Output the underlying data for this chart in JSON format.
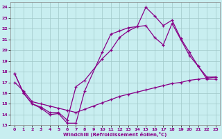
{
  "xlabel": "Windchill (Refroidissement éolien,°C)",
  "background_color": "#c8eef0",
  "grid_color": "#a0c8c8",
  "line_color": "#880088",
  "xlim": [
    -0.5,
    23.5
  ],
  "ylim": [
    13,
    24.5
  ],
  "xticks": [
    0,
    1,
    2,
    3,
    4,
    5,
    6,
    7,
    8,
    9,
    10,
    11,
    12,
    13,
    14,
    15,
    16,
    17,
    18,
    19,
    20,
    21,
    22,
    23
  ],
  "yticks": [
    13,
    14,
    15,
    16,
    17,
    18,
    19,
    20,
    21,
    22,
    23,
    24
  ],
  "line1_x": [
    0,
    1,
    2,
    3,
    4,
    5,
    6,
    7,
    8,
    10,
    11,
    12,
    13,
    14,
    15,
    16,
    17,
    18,
    19,
    20,
    21,
    22,
    23
  ],
  "line1_y": [
    17.8,
    16.0,
    15.0,
    14.6,
    14.0,
    14.1,
    13.2,
    13.2,
    16.2,
    19.8,
    21.5,
    21.8,
    22.1,
    22.2,
    24.0,
    23.2,
    22.3,
    22.8,
    21.1,
    19.8,
    18.5,
    17.5,
    17.5
  ],
  "line2_x": [
    0,
    1,
    2,
    3,
    4,
    5,
    6,
    7,
    8,
    10,
    11,
    12,
    13,
    14,
    15,
    16,
    17,
    18,
    19,
    20,
    21,
    22,
    23
  ],
  "line2_y": [
    17.8,
    16.0,
    15.0,
    14.7,
    14.2,
    14.2,
    13.5,
    16.6,
    17.2,
    19.2,
    20.0,
    21.2,
    21.8,
    22.2,
    22.3,
    21.2,
    20.5,
    22.5,
    21.0,
    19.5,
    18.5,
    17.3,
    17.3
  ],
  "line3_x": [
    0,
    1,
    2,
    3,
    4,
    5,
    6,
    7,
    8,
    9,
    10,
    11,
    12,
    13,
    14,
    15,
    16,
    17,
    18,
    19,
    20,
    21,
    22,
    23
  ],
  "line3_y": [
    17.0,
    16.2,
    15.2,
    15.0,
    14.8,
    14.6,
    14.4,
    14.2,
    14.5,
    14.8,
    15.1,
    15.4,
    15.7,
    15.9,
    16.1,
    16.3,
    16.5,
    16.7,
    16.9,
    17.0,
    17.2,
    17.3,
    17.4,
    17.5
  ]
}
